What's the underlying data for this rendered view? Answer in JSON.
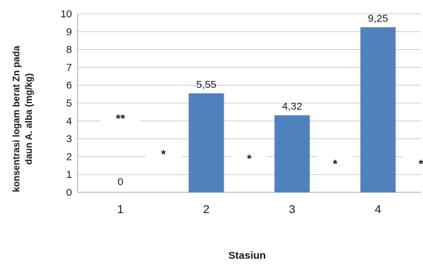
{
  "chart_data": {
    "type": "bar",
    "categories": [
      "1",
      "2",
      "3",
      "4"
    ],
    "values": [
      0,
      5.55,
      4.32,
      9.25
    ],
    "data_labels": [
      "0",
      "5,55",
      "4,32",
      "9,25"
    ],
    "ylim": [
      0,
      10
    ],
    "yticks": [
      "0",
      "1",
      "2",
      "3",
      "4",
      "5",
      "6",
      "7",
      "8",
      "9",
      "10"
    ],
    "xlabel": "Stasiun",
    "ylabel_lines": [
      "konsentrasi logam berat Zn pada",
      "daun A. alba (mg/kg)"
    ],
    "grid": true,
    "bar_color": "#4f81bd",
    "annotations": [
      {
        "text": "**",
        "x": 1,
        "y": 4.15
      },
      {
        "text": "*",
        "x": 1.5,
        "y": 2.15
      },
      {
        "text": "*",
        "x": 2.5,
        "y": 1.9
      },
      {
        "text": "*",
        "x": 3.5,
        "y": 1.6
      },
      {
        "text": "*",
        "x": 4.5,
        "y": 1.6
      }
    ]
  }
}
